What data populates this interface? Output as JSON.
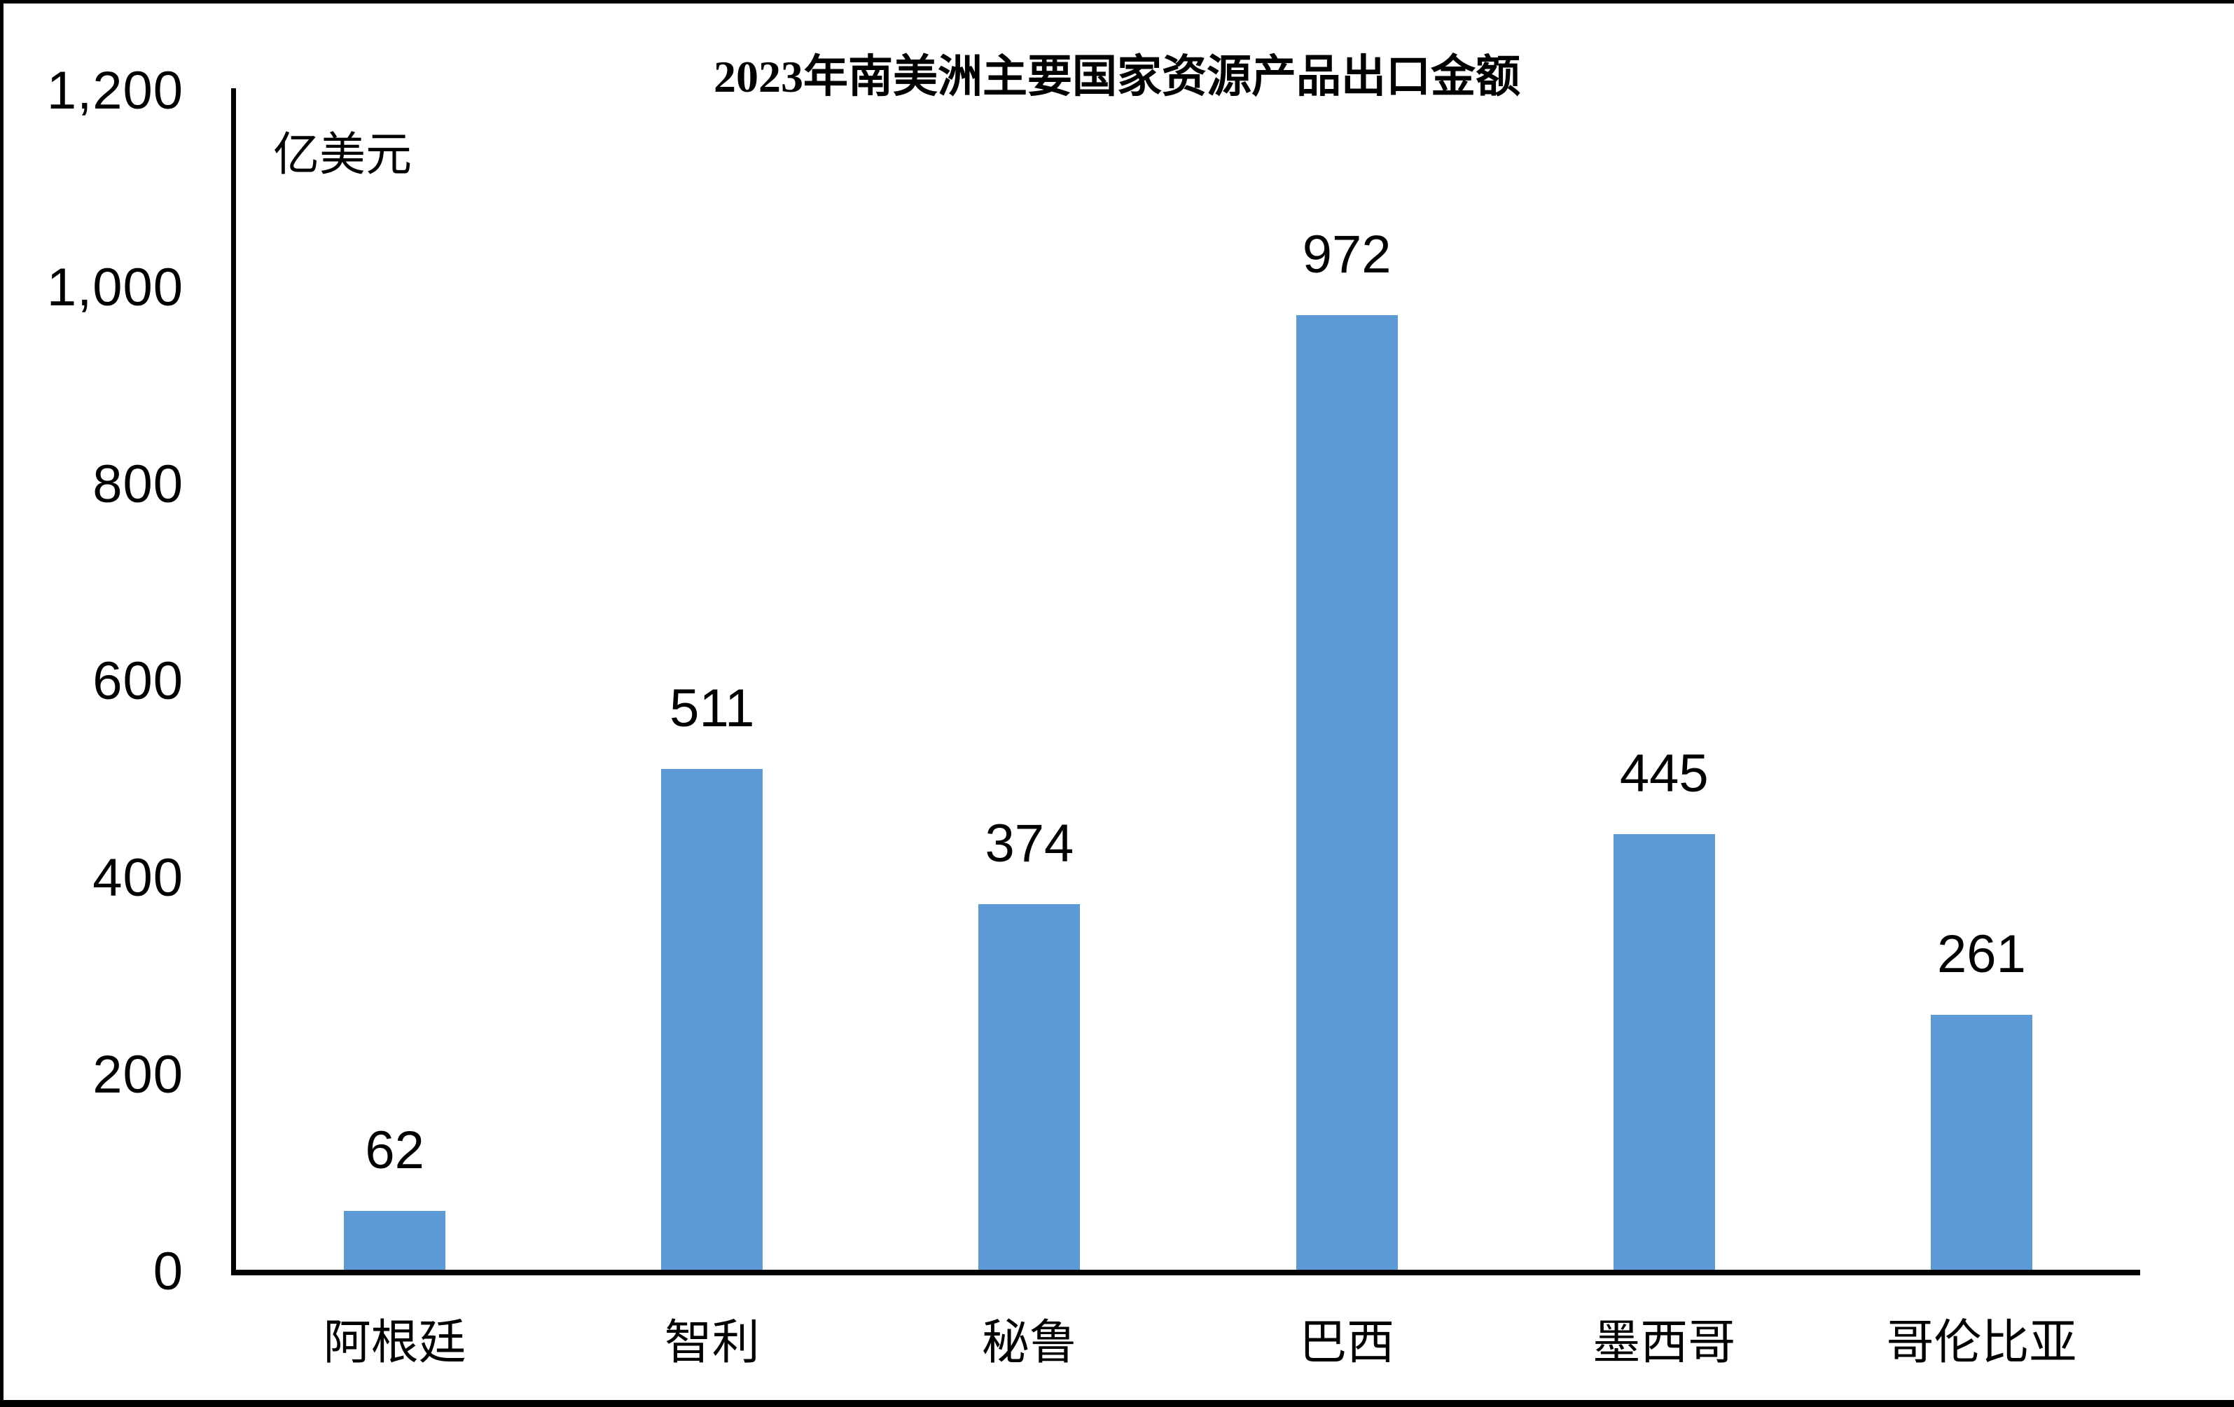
{
  "page": {
    "background": "#FFFFFF",
    "edge_border_color": "#000000"
  },
  "chart_data": {
    "type": "bar",
    "title": "2023年南美洲主要国家资源产品出口金额",
    "unit_label": "亿美元",
    "ylabel": "亿美元",
    "xlabel": "",
    "categories": [
      "阿根廷",
      "智利",
      "秘鲁",
      "巴西",
      "墨西哥",
      "哥伦比亚"
    ],
    "values": [
      62,
      511,
      374,
      972,
      445,
      261
    ],
    "data_labels": [
      "62",
      "511",
      "374",
      "972",
      "445",
      "261"
    ],
    "y_ticks": [
      "1,200",
      "1,000",
      "800",
      "600",
      "400",
      "200",
      "0"
    ],
    "ylim": [
      0,
      1200
    ],
    "bar_color": "#5B9AD5",
    "axis_color": "#000000",
    "text_color": "#000000",
    "grid": "off",
    "legend": "none"
  }
}
